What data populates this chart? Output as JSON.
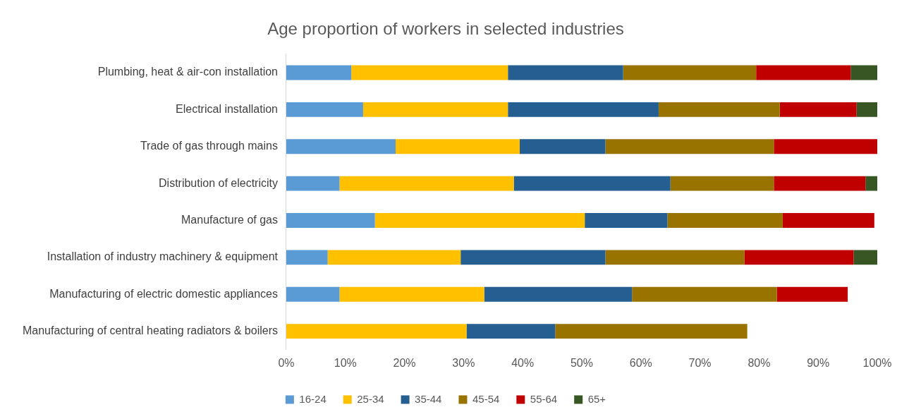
{
  "chart_data": {
    "type": "bar",
    "orientation": "horizontal",
    "stacked": true,
    "title": "Age proportion of workers in selected industries",
    "categories": [
      "Plumbing, heat & air-con installation",
      "Electrical installation",
      "Trade of gas through mains",
      "Distribution of electricity",
      "Manufacture of gas",
      "Installation of industry machinery & equipment",
      "Manufacturing of electric domestic appliances",
      "Manufacturing of central heating radiators & boilers"
    ],
    "series": [
      {
        "name": "16-24",
        "color": "#5b9bd5",
        "values": [
          11,
          13,
          18.5,
          9,
          15,
          7,
          9,
          0
        ]
      },
      {
        "name": "25-34",
        "color": "#ffc000",
        "values": [
          26.5,
          24.5,
          21,
          29.5,
          35.5,
          22.5,
          24.5,
          30.5
        ]
      },
      {
        "name": "35-44",
        "color": "#255e91",
        "values": [
          19.5,
          25.5,
          14.5,
          26.5,
          14,
          24.5,
          25,
          15
        ]
      },
      {
        "name": "45-54",
        "color": "#997300",
        "values": [
          22.5,
          20.5,
          28.5,
          17.5,
          19.5,
          23.5,
          24.5,
          32.5
        ]
      },
      {
        "name": "55-64",
        "color": "#c00000",
        "values": [
          16,
          13,
          17.5,
          15.5,
          15.5,
          18.5,
          12,
          0
        ]
      },
      {
        "name": "65+",
        "color": "#375623",
        "values": [
          4.5,
          3.5,
          0,
          2,
          0,
          4,
          0,
          0
        ]
      }
    ],
    "xlim": [
      0,
      100
    ],
    "xticks": [
      {
        "value": 0,
        "label": "0%"
      },
      {
        "value": 10,
        "label": "10%"
      },
      {
        "value": 20,
        "label": "20%"
      },
      {
        "value": 30,
        "label": "30%"
      },
      {
        "value": 40,
        "label": "40%"
      },
      {
        "value": 50,
        "label": "50%"
      },
      {
        "value": 60,
        "label": "60%"
      },
      {
        "value": 70,
        "label": "70%"
      },
      {
        "value": 80,
        "label": "80%"
      },
      {
        "value": 90,
        "label": "90%"
      },
      {
        "value": 100,
        "label": "100%"
      }
    ],
    "grid": false,
    "legend": "bottom"
  }
}
